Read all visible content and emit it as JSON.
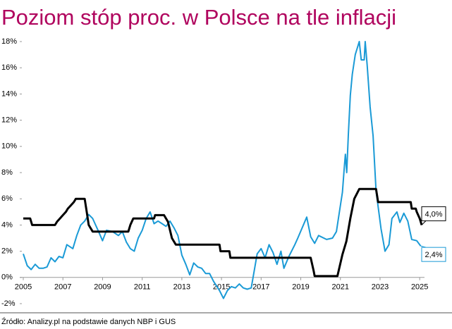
{
  "chart_data": {
    "type": "line",
    "title": "Poziom stóp proc. w Polsce na tle inflacji",
    "source": "Źródło: Analizy.pl na podstawie danych NBP i GUS",
    "xlim": [
      2005,
      2025.1
    ],
    "xticks": [
      2005,
      2007,
      2009,
      2011,
      2013,
      2015,
      2017,
      2019,
      2021,
      2023,
      2025
    ],
    "ylim": [
      -2,
      18
    ],
    "yticks": [
      {
        "value": -2,
        "label": "-2%"
      },
      {
        "value": 0,
        "label": "0%"
      },
      {
        "value": 2,
        "label": "2%"
      },
      {
        "value": 4,
        "label": "4%"
      },
      {
        "value": 6,
        "label": "6%"
      },
      {
        "value": 8,
        "label": "8%"
      },
      {
        "value": 10,
        "label": "10%"
      },
      {
        "value": 12,
        "label": "12%"
      },
      {
        "value": 14,
        "label": "14%"
      },
      {
        "value": 16,
        "label": "16%"
      },
      {
        "value": 18,
        "label": "18%"
      }
    ],
    "grid": false,
    "series": [
      {
        "color": "#1a9ad6",
        "width": 2,
        "x": [
          2005.0,
          2005.2,
          2005.4,
          2005.6,
          2005.8,
          2006.0,
          2006.2,
          2006.4,
          2006.6,
          2006.8,
          2007.0,
          2007.2,
          2007.5,
          2007.7,
          2007.9,
          2008.1,
          2008.3,
          2008.5,
          2008.8,
          2009.0,
          2009.2,
          2009.5,
          2009.8,
          2010.0,
          2010.2,
          2010.4,
          2010.6,
          2010.8,
          2011.0,
          2011.2,
          2011.4,
          2011.6,
          2011.8,
          2012.0,
          2012.2,
          2012.4,
          2012.6,
          2012.8,
          2013.0,
          2013.2,
          2013.4,
          2013.6,
          2013.8,
          2014.0,
          2014.2,
          2014.4,
          2014.6,
          2014.9,
          2015.1,
          2015.3,
          2015.5,
          2015.7,
          2015.9,
          2016.1,
          2016.3,
          2016.5,
          2016.8,
          2017.0,
          2017.2,
          2017.4,
          2017.6,
          2017.8,
          2018.0,
          2018.15,
          2018.4,
          2018.7,
          2018.85,
          2019.3,
          2019.5,
          2019.7,
          2019.9,
          2020.3,
          2020.6,
          2020.8,
          2020.9,
          2021.1,
          2021.2,
          2021.25,
          2021.32,
          2021.4,
          2021.5,
          2021.6,
          2021.75,
          2021.95,
          2022.05,
          2022.2,
          2022.25,
          2022.35,
          2022.5,
          2022.65,
          2022.8,
          2023.05,
          2023.25,
          2023.45,
          2023.6,
          2023.85,
          2024.0,
          2024.2,
          2024.4,
          2024.6,
          2024.85,
          2025.05
        ],
        "values": [
          1.8,
          0.9,
          0.6,
          1.0,
          0.7,
          0.7,
          0.8,
          1.5,
          1.2,
          1.6,
          1.5,
          2.5,
          2.2,
          3.2,
          4.0,
          4.3,
          4.8,
          4.5,
          3.5,
          2.8,
          3.6,
          3.5,
          3.2,
          3.5,
          2.7,
          2.2,
          2.0,
          3.0,
          3.6,
          4.5,
          5.0,
          4.1,
          4.3,
          4.1,
          3.9,
          4.3,
          3.8,
          3.2,
          1.7,
          1.0,
          0.2,
          1.1,
          0.8,
          0.7,
          0.3,
          0.3,
          -0.3,
          -1.0,
          -1.6,
          -1.0,
          -0.7,
          -0.8,
          -0.5,
          -0.8,
          -0.9,
          -0.8,
          1.8,
          2.2,
          1.5,
          2.5,
          1.9,
          1.0,
          2.0,
          0.7,
          1.6,
          2.5,
          3.0,
          4.6,
          3.1,
          2.6,
          3.2,
          2.9,
          3.0,
          3.5,
          4.5,
          6.5,
          8.5,
          9.4,
          8.0,
          10.9,
          13.9,
          15.5,
          17.0,
          18.0,
          16.6,
          16.6,
          18.0,
          16.2,
          13.0,
          10.8,
          6.6,
          3.7,
          2.0,
          2.5,
          4.5,
          5.0,
          4.2,
          4.9,
          4.3,
          2.9,
          2.8,
          2.4
        ],
        "end_label": "2,4%"
      },
      {
        "color": "#000000",
        "width": 3,
        "x": [
          2005.0,
          2005.35,
          2005.45,
          2006.6,
          2006.7,
          2006.85,
          2007.0,
          2007.15,
          2007.25,
          2007.4,
          2007.55,
          2007.65,
          2008.1,
          2008.2,
          2008.3,
          2008.5,
          2010.3,
          2010.4,
          2010.55,
          2011.6,
          2011.65,
          2012.1,
          2012.3,
          2012.5,
          2012.7,
          2014.9,
          2014.95,
          2015.4,
          2015.45,
          2019.5,
          2019.65,
          2019.7,
          2020.85,
          2021.1,
          2021.3,
          2021.5,
          2021.7,
          2021.95,
          2022.8,
          2022.9,
          2024.55,
          2024.6,
          2024.8,
          2024.85,
          2025.0,
          2025.1
        ],
        "values": [
          4.5,
          4.5,
          4.0,
          4.0,
          4.25,
          4.5,
          4.75,
          5.0,
          5.25,
          5.5,
          5.75,
          6.0,
          6.0,
          5.0,
          4.0,
          3.5,
          3.5,
          4.0,
          4.5,
          4.5,
          4.75,
          4.75,
          4.25,
          3.0,
          2.5,
          2.5,
          2.0,
          2.0,
          1.5,
          1.5,
          0.5,
          0.1,
          0.1,
          1.75,
          2.75,
          4.5,
          6.0,
          6.75,
          6.75,
          5.75,
          5.75,
          5.25,
          5.25,
          5.0,
          4.5,
          4.0
        ],
        "end_label": "4,0%"
      }
    ]
  }
}
